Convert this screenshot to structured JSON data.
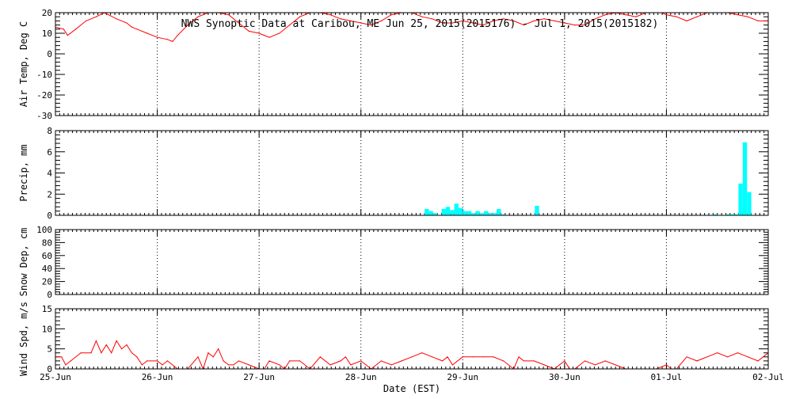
{
  "title": "NWS Synoptic Data at Caribou, ME   Jun 25, 2015(2015176) - Jul  1, 2015(2015182)",
  "xlabel": "Date (EST)",
  "date_ticks": [
    "25-Jun",
    "26-Jun",
    "27-Jun",
    "28-Jun",
    "29-Jun",
    "30-Jun",
    "01-Jul",
    "02-Jul"
  ],
  "colors": {
    "temp": "#ff0000",
    "precip": "#00ffff",
    "wind": "#ff0000",
    "frame": "#000000"
  },
  "chart_data": [
    {
      "type": "line",
      "ylabel": "Air Temp, Deg C",
      "ylim": [
        -30,
        20
      ],
      "yticks": [
        -30,
        -20,
        -10,
        0,
        10,
        20
      ],
      "xlim": [
        0,
        7
      ],
      "x_unit": "days since 25-Jun 00:00",
      "grid": true,
      "series": [
        {
          "color": "#ff0000",
          "x": [
            0,
            0.08,
            0.12,
            0.2,
            0.3,
            0.4,
            0.48,
            0.52,
            0.6,
            0.7,
            0.75,
            0.8,
            0.9,
            1.0,
            1.1,
            1.15,
            1.2,
            1.3,
            1.4,
            1.5,
            1.6,
            1.7,
            1.8,
            1.9,
            2.0,
            2.05,
            2.1,
            2.2,
            2.3,
            2.4,
            2.5,
            2.6,
            2.7,
            2.8,
            2.9,
            3.0,
            3.1,
            3.2,
            3.3,
            3.4,
            3.5,
            3.6,
            3.7,
            3.8,
            3.9,
            4.0,
            4.1,
            4.2,
            4.3,
            4.4,
            4.5,
            4.6,
            4.7,
            4.8,
            4.9,
            5.0,
            5.1,
            5.2,
            5.3,
            5.4,
            5.5,
            5.6,
            5.7,
            5.8,
            5.9,
            6.0,
            6.1,
            6.2,
            6.3,
            6.4,
            6.5,
            6.6,
            6.7,
            6.8,
            6.9,
            7.0
          ],
          "y": [
            13,
            12,
            9,
            12,
            16,
            18,
            20,
            19,
            17,
            15,
            13,
            12,
            10,
            8,
            7,
            6,
            9,
            14,
            18,
            20,
            20,
            19,
            15,
            11,
            10,
            9,
            8,
            10,
            14,
            18,
            20,
            20,
            19,
            17,
            16,
            15,
            14,
            16,
            19,
            20,
            20,
            18,
            17,
            15,
            15,
            16,
            15,
            14,
            16,
            17,
            16,
            14,
            16,
            17,
            16,
            15,
            14,
            14,
            17,
            19,
            20,
            19,
            18,
            20,
            21,
            19,
            18,
            16,
            18,
            20,
            21,
            20,
            19,
            18,
            16,
            16
          ]
        }
      ]
    },
    {
      "type": "bar",
      "ylabel": "Precip, mm",
      "ylim": [
        0,
        8
      ],
      "yticks": [
        0,
        2,
        4,
        6,
        8
      ],
      "xlim": [
        0,
        7
      ],
      "x_unit": "days since 25-Jun 00:00",
      "grid": true,
      "bar_width": 0.04167,
      "series": [
        {
          "color": "#00ffff",
          "x": [
            3.625,
            3.667,
            3.708,
            3.792,
            3.833,
            3.875,
            3.917,
            3.958,
            4.0,
            4.042,
            4.083,
            4.125,
            4.167,
            4.208,
            4.25,
            4.292,
            4.333,
            4.375,
            4.708,
            6.458,
            6.583,
            6.625,
            6.667,
            6.708,
            6.75,
            6.792,
            6.833
          ],
          "y": [
            0.6,
            0.4,
            0.2,
            0.6,
            0.8,
            0.5,
            1.1,
            0.7,
            0.4,
            0.4,
            0.2,
            0.4,
            0.2,
            0.4,
            0.2,
            0.2,
            0.6,
            0.1,
            0.9,
            0.1,
            0.1,
            0.1,
            0.1,
            3.0,
            6.9,
            2.2,
            0.0
          ]
        }
      ]
    },
    {
      "type": "line",
      "ylabel": "Snow Dep, cm",
      "ylim": [
        0,
        100
      ],
      "yticks": [
        0,
        20,
        40,
        60,
        80,
        100
      ],
      "xlim": [
        0,
        7
      ],
      "x_unit": "days since 25-Jun 00:00",
      "grid": true,
      "series": []
    },
    {
      "type": "line",
      "ylabel": "Wind Spd, m/s",
      "ylim": [
        0,
        15
      ],
      "yticks": [
        0,
        5,
        10,
        15
      ],
      "xlim": [
        0,
        7
      ],
      "x_unit": "days since 25-Jun 00:00",
      "grid": true,
      "series": [
        {
          "color": "#ff0000",
          "x": [
            0,
            0.06,
            0.1,
            0.15,
            0.25,
            0.35,
            0.4,
            0.45,
            0.5,
            0.55,
            0.6,
            0.65,
            0.7,
            0.75,
            0.8,
            0.85,
            0.9,
            1.0,
            1.05,
            1.1,
            1.2,
            1.25,
            1.3,
            1.4,
            1.45,
            1.5,
            1.55,
            1.6,
            1.65,
            1.7,
            1.75,
            1.8,
            1.9,
            2.0,
            2.05,
            2.1,
            2.2,
            2.25,
            2.3,
            2.4,
            2.5,
            2.6,
            2.7,
            2.8,
            2.85,
            2.9,
            3.0,
            3.05,
            3.1,
            3.2,
            3.3,
            3.4,
            3.5,
            3.6,
            3.7,
            3.8,
            3.85,
            3.9,
            4.0,
            4.1,
            4.2,
            4.3,
            4.4,
            4.5,
            4.55,
            4.6,
            4.7,
            4.8,
            4.9,
            4.95,
            5.0,
            5.05,
            5.1,
            5.2,
            5.3,
            5.4,
            5.5,
            5.6,
            5.7,
            5.8,
            5.9,
            6.0,
            6.05,
            6.1,
            6.2,
            6.3,
            6.4,
            6.5,
            6.6,
            6.7,
            6.8,
            6.9,
            7.0
          ],
          "y": [
            3,
            3,
            1,
            2,
            4,
            4,
            7,
            4,
            6,
            4,
            7,
            5,
            6,
            4,
            3,
            1,
            2,
            2,
            1,
            2,
            0,
            0,
            0,
            3,
            0,
            4,
            3,
            5,
            2,
            1,
            1,
            2,
            1,
            0,
            0,
            2,
            1,
            0,
            2,
            2,
            0,
            3,
            1,
            2,
            3,
            1,
            2,
            1,
            0,
            2,
            1,
            2,
            3,
            4,
            3,
            2,
            3,
            1,
            3,
            3,
            3,
            3,
            2,
            0,
            3,
            2,
            2,
            1,
            0,
            1,
            2,
            0,
            0,
            2,
            1,
            2,
            1,
            0,
            0,
            0,
            0,
            1,
            0,
            0,
            3,
            2,
            3,
            4,
            3,
            4,
            3,
            2,
            4
          ]
        }
      ]
    }
  ]
}
